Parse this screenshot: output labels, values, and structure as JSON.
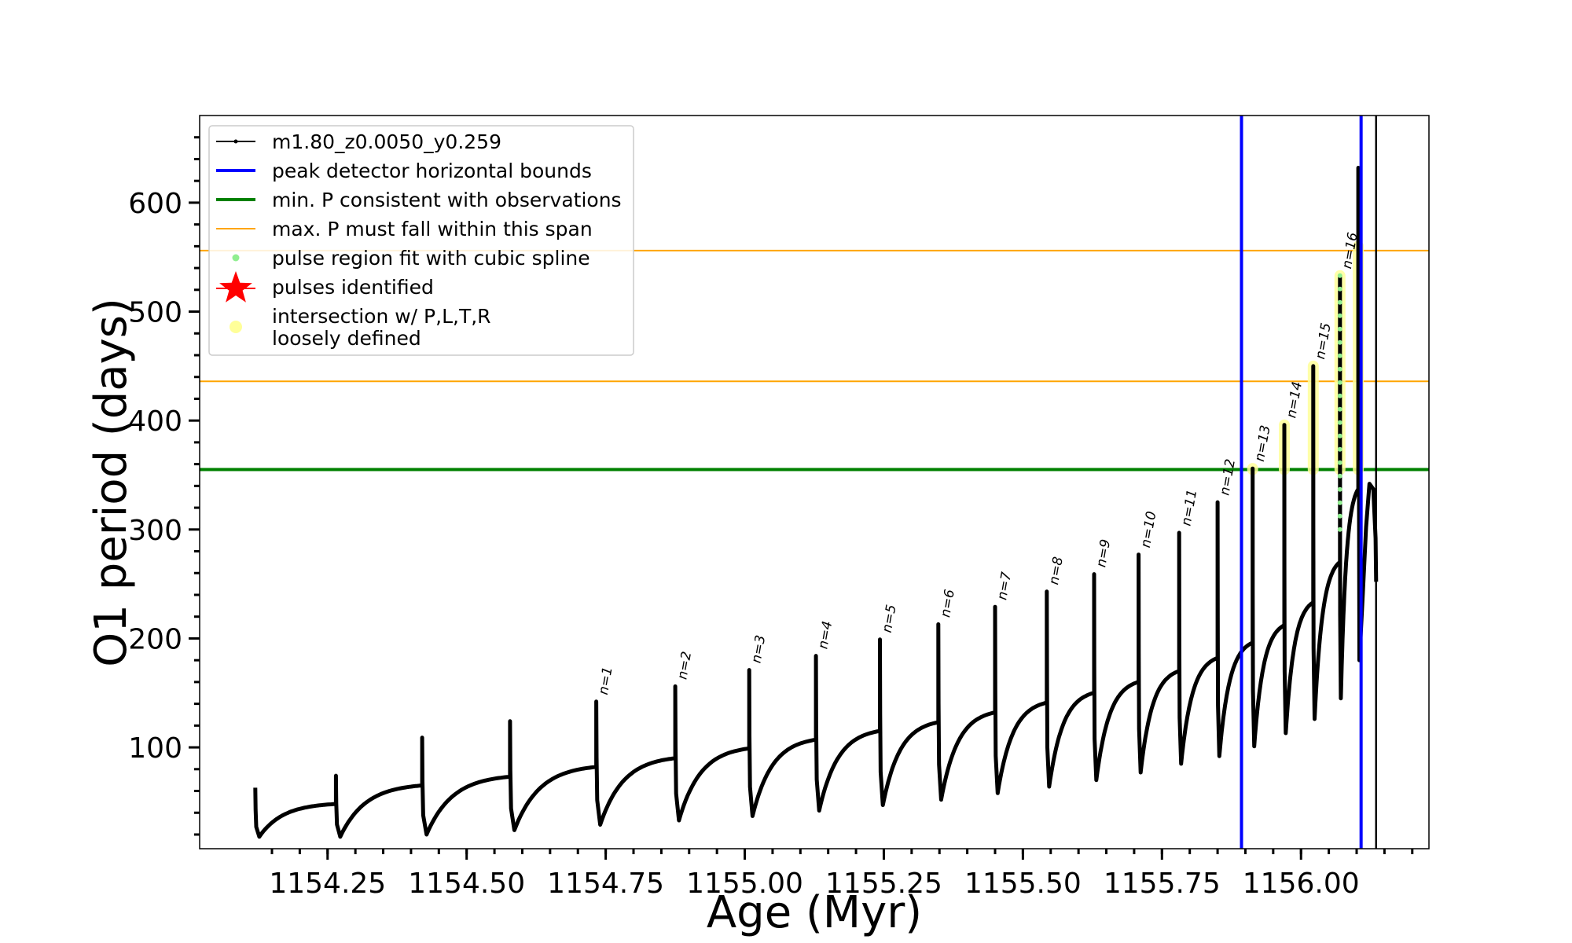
{
  "chart_data": {
    "type": "line",
    "title": "",
    "xlabel": "Age (Myr)",
    "ylabel": "O1 period (days)",
    "xlim": [
      1154.02,
      1156.23
    ],
    "ylim": [
      7,
      680
    ],
    "x_ticks": [
      1154.25,
      1154.5,
      1154.75,
      1155.0,
      1155.25,
      1155.5,
      1155.75,
      1156.0
    ],
    "x_tick_labels": [
      "1154.25",
      "1154.50",
      "1154.75",
      "1155.00",
      "1155.25",
      "1155.50",
      "1155.75",
      "1156.00"
    ],
    "y_ticks": [
      100,
      200,
      300,
      400,
      500,
      600
    ],
    "y_tick_labels": [
      "100",
      "200",
      "300",
      "400",
      "500",
      "600"
    ],
    "legend": {
      "placement": "upper-left",
      "entries": [
        {
          "label": "m1.80_z0.0050_y0.259",
          "color": "#000000",
          "marker": "line-dot"
        },
        {
          "label": "peak detector horizontal bounds",
          "color": "#0000ff",
          "marker": "line"
        },
        {
          "label": "min. P consistent with observations",
          "color": "#008000",
          "marker": "line"
        },
        {
          "label": "max. P must fall within this span",
          "color": "#ffa500",
          "marker": "thin-line"
        },
        {
          "label": "pulse region fit with cubic spline",
          "color": "#90ee90",
          "marker": "dot"
        },
        {
          "label": "pulses identified",
          "color": "#ff0000",
          "marker": "star"
        },
        {
          "label": "intersection w/ P,L,T,R\nloosely defined",
          "color": "#ffff99",
          "marker": "circle"
        }
      ]
    },
    "vertical_lines": [
      {
        "x": 1155.893,
        "color": "#0000ff",
        "role": "peak detector horizontal bounds"
      },
      {
        "x": 1156.108,
        "color": "#0000ff",
        "role": "peak detector horizontal bounds"
      },
      {
        "x": 1156.135,
        "color": "#000000",
        "role": "end of track"
      }
    ],
    "horizontal_lines": [
      {
        "y": 355,
        "color": "#008000",
        "role": "min. P consistent with observations"
      },
      {
        "y": 436,
        "color": "#ffa500",
        "role": "max. P span lower"
      },
      {
        "y": 556,
        "color": "#ffa500",
        "role": "max. P span upper"
      }
    ],
    "track_start": {
      "x": 1154.12,
      "y_peak": 63,
      "y_min": 18,
      "y_end": 48
    },
    "pulses": [
      {
        "label": "",
        "x": 1154.265,
        "y_peak": 74,
        "y_min": 18,
        "y_end": 65
      },
      {
        "label": "",
        "x": 1154.42,
        "y_peak": 109,
        "y_min": 20,
        "y_end": 73
      },
      {
        "label": "",
        "x": 1154.578,
        "y_peak": 124,
        "y_min": 24,
        "y_end": 82
      },
      {
        "label": "n=1",
        "x": 1154.733,
        "y_peak": 142,
        "y_min": 29,
        "y_end": 90
      },
      {
        "label": "n=2",
        "x": 1154.875,
        "y_peak": 156,
        "y_min": 33,
        "y_end": 99
      },
      {
        "label": "n=3",
        "x": 1155.008,
        "y_peak": 171,
        "y_min": 37,
        "y_end": 107
      },
      {
        "label": "n=4",
        "x": 1155.128,
        "y_peak": 184,
        "y_min": 42,
        "y_end": 115
      },
      {
        "label": "n=5",
        "x": 1155.243,
        "y_peak": 199,
        "y_min": 47,
        "y_end": 123
      },
      {
        "label": "n=6",
        "x": 1155.348,
        "y_peak": 213,
        "y_min": 52,
        "y_end": 132
      },
      {
        "label": "n=7",
        "x": 1155.45,
        "y_peak": 229,
        "y_min": 58,
        "y_end": 141
      },
      {
        "label": "n=8",
        "x": 1155.543,
        "y_peak": 243,
        "y_min": 64,
        "y_end": 150
      },
      {
        "label": "n=9",
        "x": 1155.628,
        "y_peak": 259,
        "y_min": 70,
        "y_end": 160
      },
      {
        "label": "n=10",
        "x": 1155.708,
        "y_peak": 277,
        "y_min": 77,
        "y_end": 170
      },
      {
        "label": "n=11",
        "x": 1155.781,
        "y_peak": 297,
        "y_min": 85,
        "y_end": 182
      },
      {
        "label": "n=12",
        "x": 1155.85,
        "y_peak": 325,
        "y_min": 92,
        "y_end": 196
      },
      {
        "label": "n=13",
        "x": 1155.913,
        "y_peak": 356,
        "y_min": 101,
        "y_end": 212
      },
      {
        "label": "n=14",
        "x": 1155.97,
        "y_peak": 396,
        "y_min": 113,
        "y_end": 233
      },
      {
        "label": "n=15",
        "x": 1156.022,
        "y_peak": 450,
        "y_min": 126,
        "y_end": 270
      },
      {
        "label": "n=16",
        "x": 1156.07,
        "y_peak": 533,
        "y_min": 145,
        "y_end": 337
      }
    ],
    "track_end": {
      "x": 1156.103,
      "y_peak": 632,
      "y_min": 180,
      "y_top": 342,
      "y_last": 252
    },
    "colors": {
      "track": "#000000",
      "blue": "#0000ff",
      "green": "#008000",
      "orange": "#ffa500",
      "spline": "#90ee90",
      "highlight": "#ffff99",
      "star": "#ff0000"
    }
  }
}
